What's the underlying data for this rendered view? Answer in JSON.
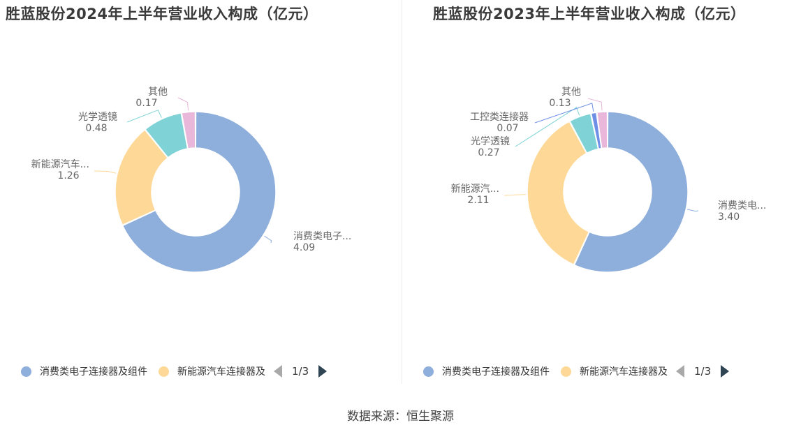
{
  "chart_data": [
    {
      "type": "pie",
      "title": "胜蓝股份2024年上半年营业收入构成（亿元）",
      "series": [
        {
          "name": "消费类电子连接器及组件",
          "label": "消费类电子...",
          "value": 4.09,
          "value_label": "4.09",
          "color": "#8eaedb"
        },
        {
          "name": "新能源汽车连接器及组件",
          "label": "新能源汽车...",
          "value": 1.26,
          "value_label": "1.26",
          "color": "#fed897"
        },
        {
          "name": "光学透镜",
          "label": "光学透镜",
          "value": 0.48,
          "value_label": "0.48",
          "color": "#7fd3d6"
        },
        {
          "name": "其他",
          "label": "其他",
          "value": 0.17,
          "value_label": "0.17",
          "color": "#e8b7d9"
        }
      ],
      "legend": {
        "placement": "bottom",
        "items": [
          "消费类电子连接器及组件",
          "新能源汽车连接器及"
        ],
        "page": "1/3"
      }
    },
    {
      "type": "pie",
      "title": "胜蓝股份2023年上半年营业收入构成（亿元）",
      "series": [
        {
          "name": "消费类电子连接器及组件",
          "label": "消费类电...",
          "value": 3.4,
          "value_label": "3.40",
          "color": "#8eaedb"
        },
        {
          "name": "新能源汽车连接器及组件",
          "label": "新能源汽...",
          "value": 2.11,
          "value_label": "2.11",
          "color": "#fed897"
        },
        {
          "name": "光学透镜",
          "label": "光学透镜",
          "value": 0.27,
          "value_label": "0.27",
          "color": "#7fd3d6"
        },
        {
          "name": "工控类连接器",
          "label": "工控类连接器",
          "value": 0.07,
          "value_label": "0.07",
          "color": "#6f8fe6"
        },
        {
          "name": "其他",
          "label": "其他",
          "value": 0.13,
          "value_label": "0.13",
          "color": "#e8b7d9"
        }
      ],
      "legend": {
        "placement": "bottom",
        "items": [
          "消费类电子连接器及组件",
          "新能源汽车连接器及"
        ],
        "page": "1/3"
      }
    }
  ],
  "source": "数据来源：恒生聚源"
}
